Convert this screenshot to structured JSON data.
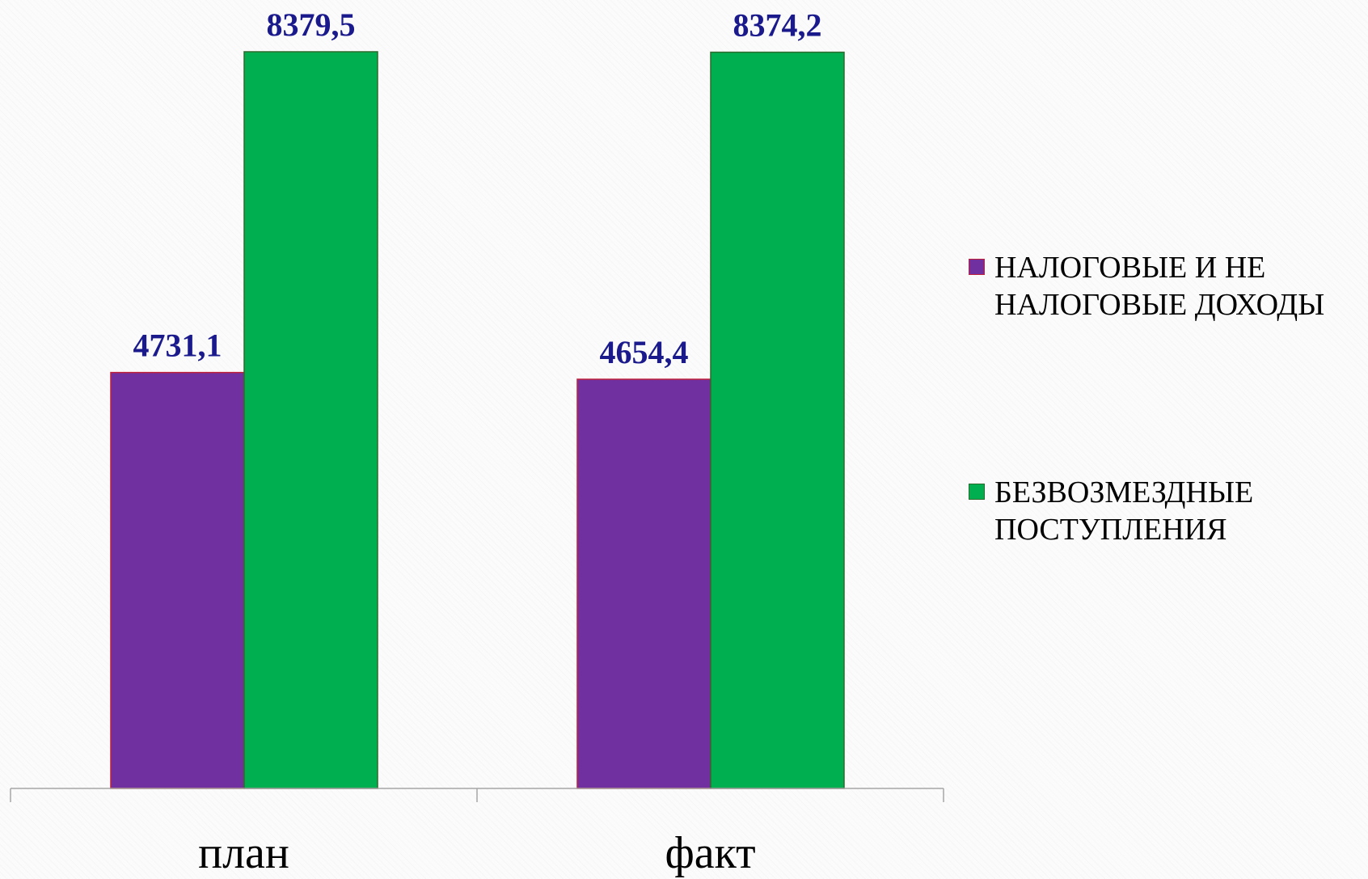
{
  "chart_data": {
    "type": "bar",
    "categories": [
      "план",
      "факт"
    ],
    "series": [
      {
        "name": "НАЛОГОВЫЕ И НЕ НАЛОГОВЫЕ ДОХОДЫ",
        "values": [
          4731.1,
          4654.4
        ],
        "labels": [
          "4731,1",
          "4654,4"
        ],
        "color": "#7030a0",
        "border": "#c0203a"
      },
      {
        "name": "БЕЗВОЗМЕЗДНЫЕ ПОСТУПЛЕНИЯ",
        "values": [
          8379.5,
          8374.2
        ],
        "labels": [
          "8379,5",
          "8374,2"
        ],
        "color": "#00b050",
        "border": "#2d6a2d"
      }
    ],
    "ylim": [
      0,
      9000
    ],
    "grid": false,
    "legend_position": "right",
    "data_label_color": "#1a1a8c"
  }
}
